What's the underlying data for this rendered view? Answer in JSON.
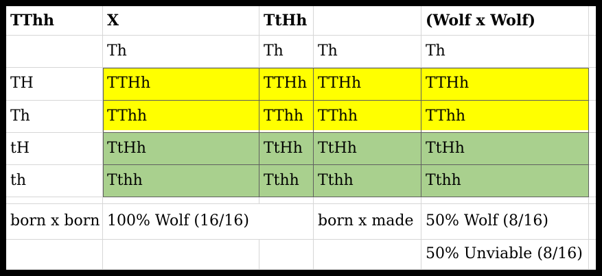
{
  "spreadsheet": {
    "header": {
      "parent1": "TThh",
      "cross_symbol": "X",
      "parent2": "TtHh",
      "cross_name": "(Wolf x Wolf)"
    },
    "gamete_columns": [
      "Th",
      "Th",
      "Th",
      "Th"
    ],
    "punnett": [
      {
        "gamete": "TH",
        "fill": "yellow",
        "offspring": [
          "TTHh",
          "TTHh",
          "TTHh",
          "TTHh"
        ]
      },
      {
        "gamete": "Th",
        "fill": "yellow",
        "offspring": [
          "TThh",
          "TThh",
          "TThh",
          "TThh"
        ]
      },
      {
        "gamete": "tH",
        "fill": "green",
        "offspring": [
          "TtHh",
          "TtHh",
          "TtHh",
          "TtHh"
        ]
      },
      {
        "gamete": "th",
        "fill": "green",
        "offspring": [
          "Tthh",
          "Tthh",
          "Tthh",
          "Tthh"
        ]
      }
    ],
    "results": {
      "born_x_born_label": "born x born",
      "born_x_born_value": "100% Wolf (16/16)",
      "born_x_made_label": "born x made",
      "born_x_made_value": "50% Wolf (8/16)",
      "born_x_made_value2": "50% Unviable (8/16)"
    },
    "colors": {
      "yellow": "#FFFF00",
      "green": "#A9D08E"
    }
  }
}
